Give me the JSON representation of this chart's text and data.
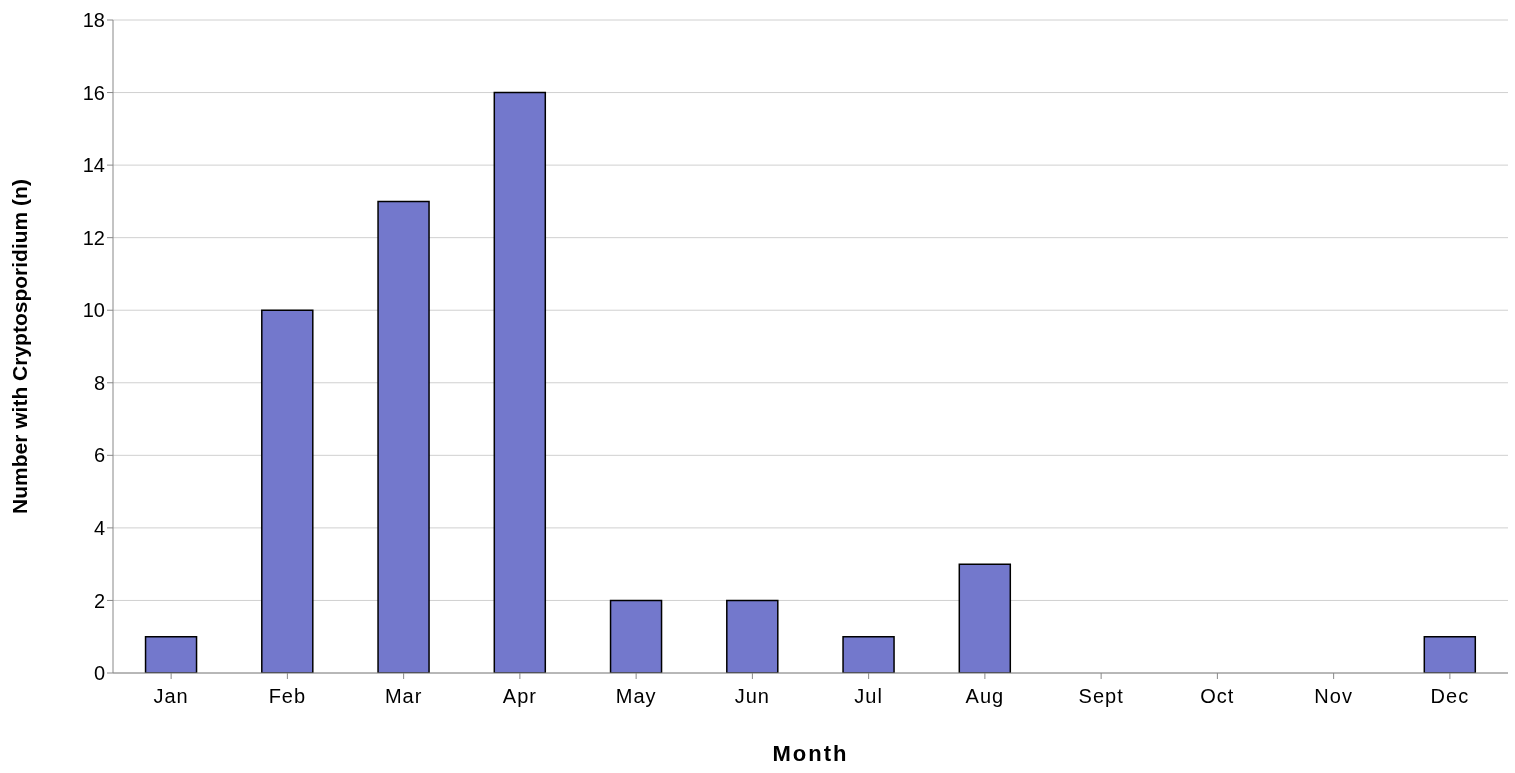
{
  "chart_data": {
    "type": "bar",
    "xlabel": "Month",
    "ylabel": "Number with Cryptosporidium (n)",
    "categories": [
      "Jan",
      "Feb",
      "Mar",
      "Apr",
      "May",
      "Jun",
      "Jul",
      "Aug",
      "Sept",
      "Oct",
      "Nov",
      "Dec"
    ],
    "values": [
      1,
      10,
      13,
      16,
      2,
      2,
      1,
      3,
      0,
      0,
      0,
      1
    ],
    "color": "#7378cc",
    "ylim": [
      0,
      18
    ],
    "yticks": [
      0,
      2,
      4,
      6,
      8,
      10,
      12,
      14,
      16,
      18
    ],
    "grid": "y"
  }
}
